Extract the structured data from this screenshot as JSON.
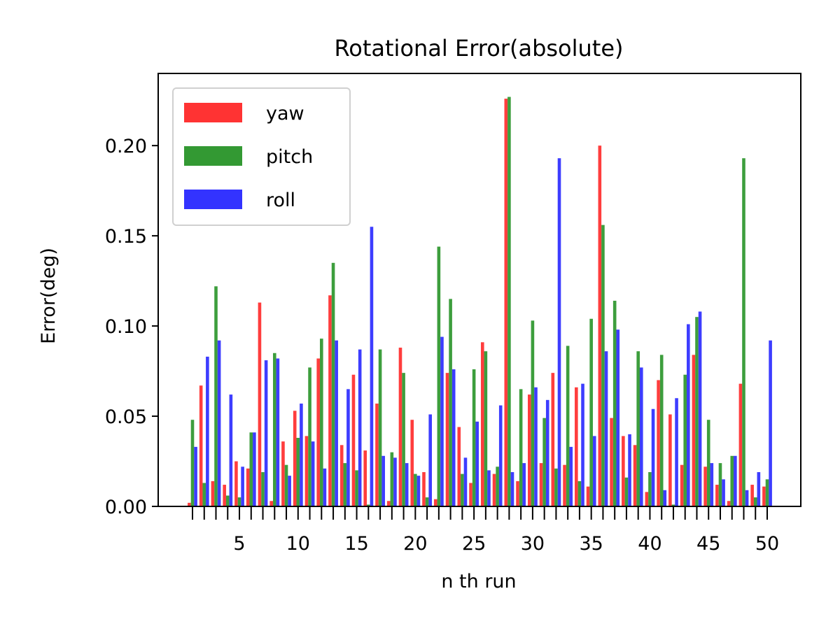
{
  "chart_data": {
    "type": "bar",
    "title": "Rotational Error(absolute)",
    "xlabel": "n th run",
    "ylabel": "Error(deg)",
    "ylim": [
      0,
      0.24
    ],
    "y_ticks": [
      "0.00",
      "0.05",
      "0.10",
      "0.15",
      "0.20"
    ],
    "x_ticks": [
      "5",
      "10",
      "15",
      "20",
      "25",
      "30",
      "35",
      "40",
      "45",
      "50"
    ],
    "grid": false,
    "legend_position": "top-left",
    "categories": [
      1,
      2,
      3,
      4,
      5,
      6,
      7,
      8,
      9,
      10,
      11,
      12,
      13,
      14,
      15,
      16,
      17,
      18,
      19,
      20,
      21,
      22,
      23,
      24,
      25,
      26,
      27,
      28,
      29,
      30,
      31,
      32,
      33,
      34,
      35,
      36,
      37,
      38,
      39,
      40,
      41,
      42,
      43,
      44,
      45,
      46,
      47,
      48,
      49,
      50
    ],
    "series": [
      {
        "name": "yaw",
        "color": "#ff3333",
        "values": [
          0.002,
          0.067,
          0.014,
          0.012,
          0.025,
          0.021,
          0.113,
          0.003,
          0.036,
          0.053,
          0.039,
          0.082,
          0.117,
          0.034,
          0.073,
          0.031,
          0.057,
          0.003,
          0.088,
          0.048,
          0.019,
          0.004,
          0.074,
          0.044,
          0.013,
          0.091,
          0.018,
          0.226,
          0.014,
          0.062,
          0.024,
          0.074,
          0.023,
          0.066,
          0.011,
          0.2,
          0.049,
          0.039,
          0.034,
          0.008,
          0.07,
          0.051,
          0.023,
          0.084,
          0.022,
          0.012,
          0.003,
          0.068,
          0.012,
          0.011
        ]
      },
      {
        "name": "pitch",
        "color": "#339933",
        "values": [
          0.048,
          0.013,
          0.122,
          0.006,
          0.005,
          0.041,
          0.019,
          0.085,
          0.023,
          0.038,
          0.077,
          0.093,
          0.135,
          0.024,
          0.02,
          0.001,
          0.087,
          0.03,
          0.074,
          0.018,
          0.005,
          0.144,
          0.115,
          0.018,
          0.076,
          0.086,
          0.022,
          0.227,
          0.065,
          0.103,
          0.049,
          0.021,
          0.089,
          0.014,
          0.104,
          0.156,
          0.114,
          0.016,
          0.086,
          0.019,
          0.084,
          0.001,
          0.073,
          0.105,
          0.048,
          0.024,
          0.028,
          0.193,
          0.005,
          0.015
        ]
      },
      {
        "name": "roll",
        "color": "#3333ff",
        "values": [
          0.033,
          0.083,
          0.092,
          0.062,
          0.022,
          0.041,
          0.081,
          0.082,
          0.017,
          0.057,
          0.036,
          0.021,
          0.092,
          0.065,
          0.087,
          0.155,
          0.028,
          0.027,
          0.024,
          0.017,
          0.051,
          0.094,
          0.076,
          0.027,
          0.047,
          0.02,
          0.056,
          0.019,
          0.024,
          0.066,
          0.059,
          0.193,
          0.033,
          0.068,
          0.039,
          0.086,
          0.098,
          0.04,
          0.077,
          0.054,
          0.009,
          0.06,
          0.101,
          0.108,
          0.024,
          0.015,
          0.028,
          0.009,
          0.019,
          0.092
        ]
      }
    ]
  }
}
